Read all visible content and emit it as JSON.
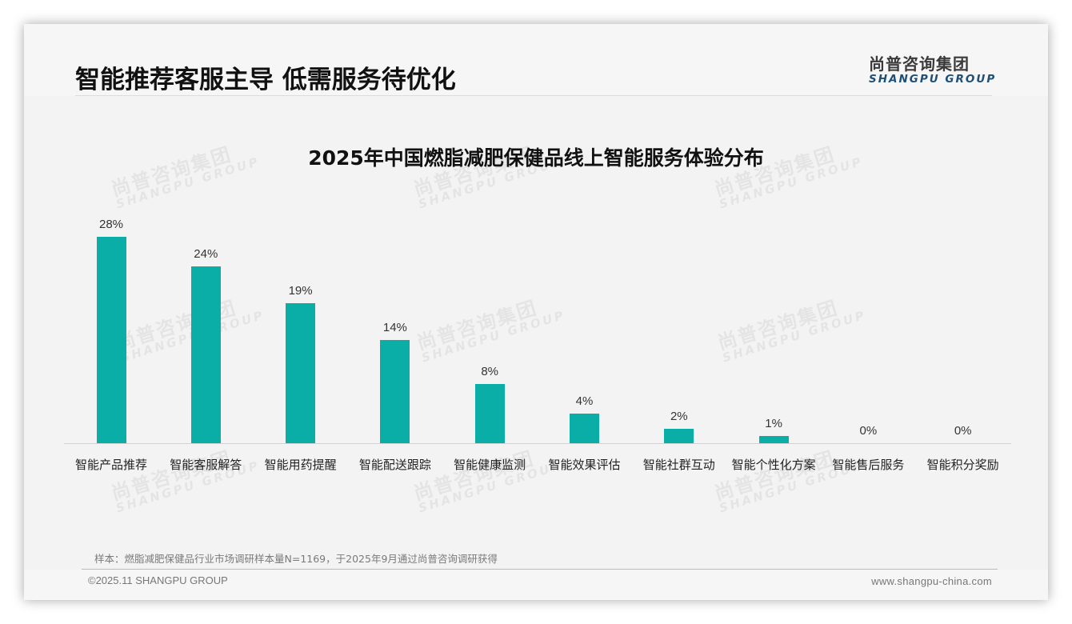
{
  "header": {
    "title": "智能推荐客服主导 低需服务待优化",
    "logo_cn": "尚普咨询集团",
    "logo_en": "SHANGPU GROUP"
  },
  "watermark": {
    "cn": "尚普咨询集团",
    "en": "SHANGPU GROUP"
  },
  "chart_data": {
    "type": "bar",
    "title": "2025年中国燃脂减肥保健品线上智能服务体验分布",
    "xlabel": "",
    "ylabel": "",
    "categories": [
      "智能产品推荐",
      "智能客服解答",
      "智能用药提醒",
      "智能配送跟踪",
      "智能健康监测",
      "智能效果评估",
      "智能社群互动",
      "智能个性化方案",
      "智能售后服务",
      "智能积分奖励"
    ],
    "values": [
      28,
      24,
      19,
      14,
      8,
      4,
      2,
      1,
      0,
      0
    ],
    "value_labels": [
      "28%",
      "24%",
      "19%",
      "14%",
      "8%",
      "4%",
      "2%",
      "1%",
      "0%",
      "0%"
    ],
    "unit": "%",
    "ylim": [
      0,
      30
    ],
    "grid": false,
    "legend": null,
    "bar_color": "#0aaea6"
  },
  "footer": {
    "note": "样本：燃脂减肥保健品行业市场调研样本量N=1169，于2025年9月通过尚普咨询调研获得",
    "copyright": "©2025.11 SHANGPU GROUP",
    "website": "www.shangpu-china.com"
  }
}
